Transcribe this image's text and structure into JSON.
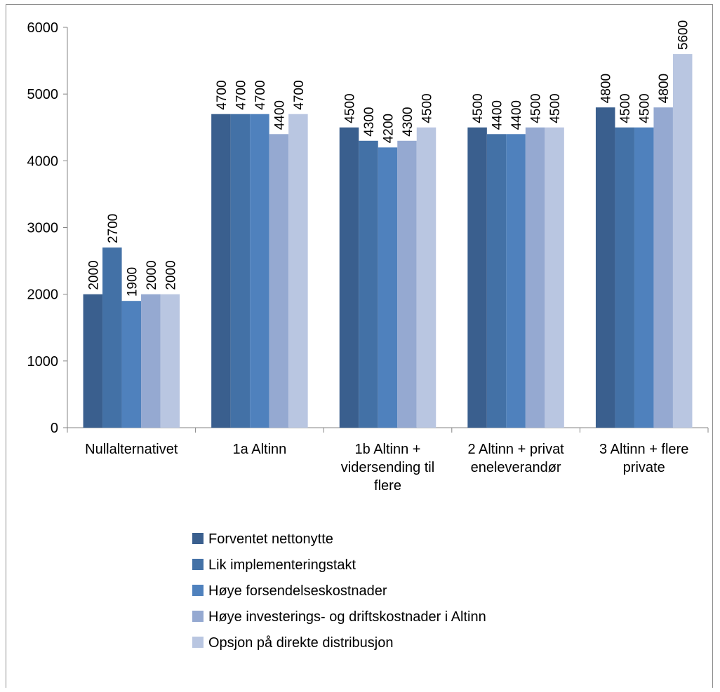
{
  "chart_data": {
    "type": "bar",
    "title": "",
    "xlabel": "",
    "ylabel": "",
    "ylim": [
      0,
      6000
    ],
    "yticks": [
      0,
      1000,
      2000,
      3000,
      4000,
      5000,
      6000
    ],
    "grid": false,
    "legend_position": "bottom",
    "categories": [
      [
        "Nullalternativet"
      ],
      [
        "1a Altinn"
      ],
      [
        "1b Altinn +",
        "vidersending til",
        "flere"
      ],
      [
        "2 Altinn + privat",
        "eneleverandør"
      ],
      [
        "3 Altinn + flere",
        "private"
      ]
    ],
    "series": [
      {
        "name": "Forventet nettonytte",
        "color": "#3A5F8E",
        "values": [
          2000,
          4700,
          4500,
          4500,
          4800
        ]
      },
      {
        "name": "Lik implementeringstakt",
        "color": "#4371A6",
        "values": [
          2700,
          4700,
          4300,
          4400,
          4500
        ]
      },
      {
        "name": "Høye forsendelseskostnader",
        "color": "#4F81BD",
        "values": [
          1900,
          4700,
          4200,
          4400,
          4500
        ]
      },
      {
        "name": "Høye investerings- og driftskostnader i Altinn",
        "color": "#95A9D1",
        "values": [
          2000,
          4400,
          4300,
          4500,
          4800
        ]
      },
      {
        "name": "Opsjon på direkte distribusjon",
        "color": "#B9C6E1",
        "values": [
          2000,
          4700,
          4500,
          4500,
          5600
        ]
      }
    ]
  }
}
